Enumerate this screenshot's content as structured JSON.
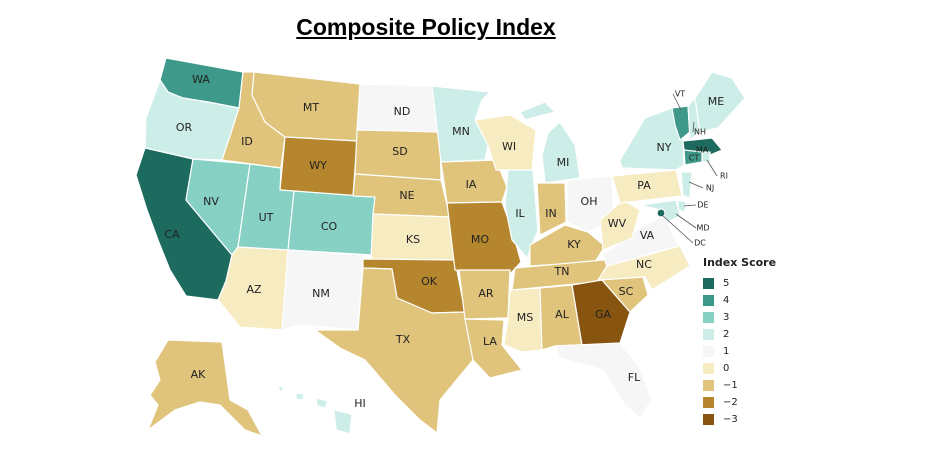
{
  "title": "Composite Policy Index",
  "legend": {
    "title": "Index Score",
    "items": [
      {
        "label": "5",
        "color": "#1d6b5f"
      },
      {
        "label": "4",
        "color": "#3e998a"
      },
      {
        "label": "3",
        "color": "#86d1c3"
      },
      {
        "label": "2",
        "color": "#cdeee8"
      },
      {
        "label": "1",
        "color": "#f6f6f6"
      },
      {
        "label": "0",
        "color": "#f7ebc2"
      },
      {
        "label": "−1",
        "color": "#e0c47c"
      },
      {
        "label": "−2",
        "color": "#b5862e"
      },
      {
        "label": "−3",
        "color": "#87550f"
      }
    ]
  },
  "states": {
    "WA": 4,
    "OR": 2,
    "CA": 5,
    "ID": -1,
    "NV": 3,
    "MT": -1,
    "WY": -2,
    "UT": 3,
    "CO": 3,
    "AZ": 0,
    "NM": 1,
    "ND": 1,
    "SD": -1,
    "NE": -1,
    "KS": 0,
    "OK": -2,
    "TX": -1,
    "MN": 2,
    "IA": -1,
    "MO": -2,
    "AR": -1,
    "LA": -1,
    "WI": 0,
    "IL": 2,
    "MI": 2,
    "IN": -1,
    "KY": -1,
    "TN": -1,
    "MS": 0,
    "AL": -1,
    "GA": -3,
    "FL": 1,
    "SC": -1,
    "NC": 0,
    "OH": 1,
    "WV": 0,
    "VA": 1,
    "PA": 0,
    "NY": 2,
    "VT": 4,
    "NH": 2,
    "ME": 2,
    "MA": 5,
    "RI": 2,
    "CT": 4,
    "NJ": 2,
    "DE": 2,
    "MD": 2,
    "DC": 5,
    "AK": -1,
    "HI": 2
  }
}
